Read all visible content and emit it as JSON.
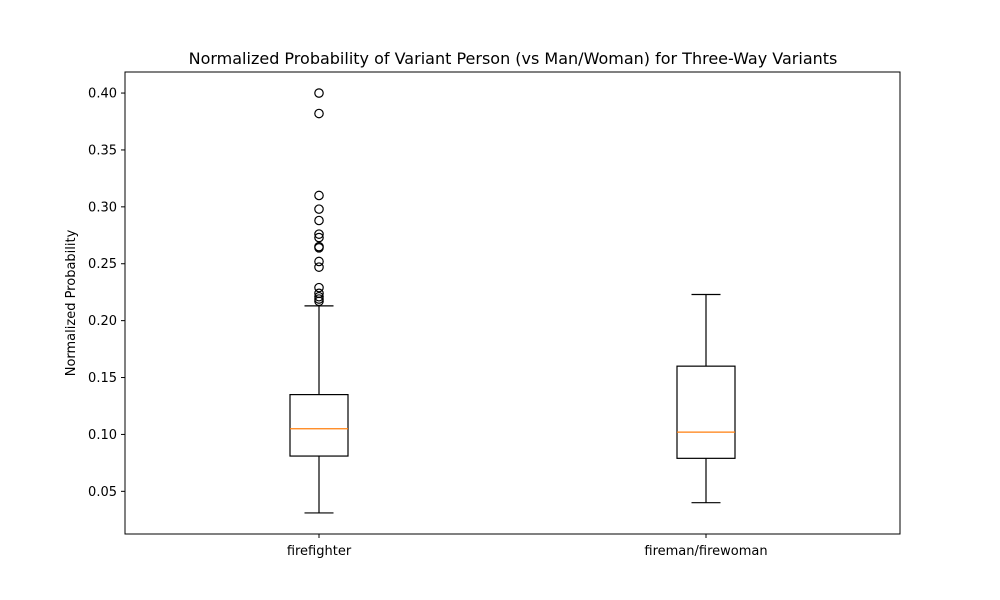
{
  "chart_data": {
    "type": "box",
    "title": "Normalized Probability of Variant Person (vs Man/Woman) for Three-Way Variants",
    "xlabel": "",
    "ylabel": "Normalized Probability",
    "ylim": [
      0.0125,
      0.4185
    ],
    "yticks": [
      0.05,
      0.1,
      0.15,
      0.2,
      0.25,
      0.3,
      0.35,
      0.4
    ],
    "ytick_labels": [
      "0.05",
      "0.10",
      "0.15",
      "0.20",
      "0.25",
      "0.30",
      "0.35",
      "0.40"
    ],
    "grid": false,
    "categories": [
      "firefighter",
      "fireman/firewoman"
    ],
    "boxes": [
      {
        "category": "firefighter",
        "whisker_low": 0.031,
        "q1": 0.081,
        "median": 0.105,
        "q3": 0.135,
        "whisker_high": 0.213,
        "outliers": [
          0.217,
          0.219,
          0.221,
          0.224,
          0.229,
          0.247,
          0.252,
          0.264,
          0.265,
          0.273,
          0.276,
          0.288,
          0.298,
          0.31,
          0.382,
          0.4
        ]
      },
      {
        "category": "fireman/firewoman",
        "whisker_low": 0.04,
        "q1": 0.079,
        "median": 0.102,
        "q3": 0.16,
        "whisker_high": 0.223,
        "outliers": []
      }
    ],
    "colors": {
      "box": "#000000",
      "median": "#ff7f0e",
      "outlier": "#000000"
    }
  }
}
